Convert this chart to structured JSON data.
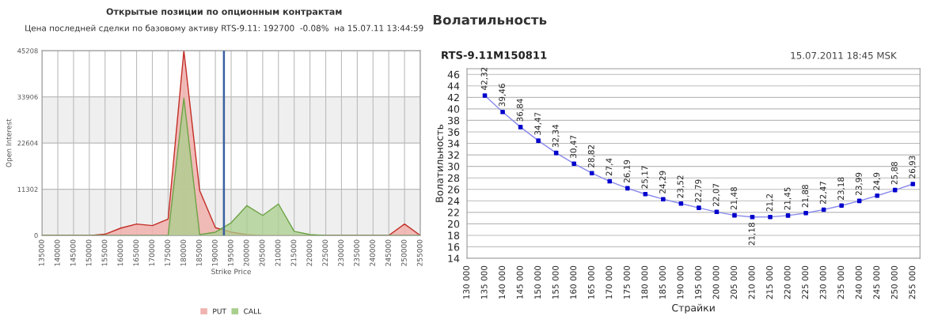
{
  "chart_data": [
    {
      "type": "area",
      "title": "Открытые позиции по опционным контрактам",
      "subtitle": "Цена последней сделки по базовому активу RTS-9.11: 192700  -0.08%  на 15.07.11 13:44:59",
      "xlabel": "Strike Price",
      "ylabel": "Open Interest",
      "x": [
        135000,
        140000,
        145000,
        150000,
        155000,
        160000,
        165000,
        170000,
        175000,
        180000,
        185000,
        190000,
        195000,
        200000,
        205000,
        210000,
        215000,
        220000,
        225000,
        230000,
        235000,
        240000,
        245000,
        250000,
        255000
      ],
      "series": [
        {
          "name": "PUT",
          "color": "#f0b4b0",
          "values": [
            0,
            0,
            0,
            0,
            300,
            1800,
            2800,
            2400,
            4000,
            45208,
            11000,
            1900,
            800,
            200,
            0,
            0,
            0,
            0,
            0,
            0,
            0,
            0,
            0,
            2800,
            0
          ]
        },
        {
          "name": "CALL",
          "color": "#a9cf8c",
          "values": [
            0,
            0,
            0,
            0,
            0,
            0,
            0,
            0,
            0,
            33600,
            200,
            800,
            3100,
            7300,
            4900,
            7700,
            1000,
            200,
            0,
            0,
            0,
            0,
            0,
            0,
            0
          ]
        }
      ],
      "xlim": [
        135000,
        255000
      ],
      "xticks": [
        135000,
        140000,
        145000,
        150000,
        155000,
        160000,
        165000,
        170000,
        175000,
        180000,
        185000,
        190000,
        195000,
        200000,
        205000,
        210000,
        215000,
        220000,
        225000,
        230000,
        235000,
        240000,
        245000,
        250000,
        255000
      ],
      "ylim": [
        0,
        45208
      ],
      "yticks": [
        0,
        11302,
        22604,
        33906,
        45208
      ],
      "ref_lines": [
        {
          "axis": "x",
          "value": 192700,
          "color": "#3a5fa0"
        }
      ],
      "bands": [
        {
          "axis": "y",
          "from": 0,
          "to": 11302,
          "color": "#efefef"
        },
        {
          "axis": "y",
          "from": 22604,
          "to": 33906,
          "color": "#efefef"
        }
      ],
      "grid": true,
      "legend": "bottom"
    },
    {
      "type": "line",
      "title": "Волатильность",
      "subtitle": "RTS-9.11M150811",
      "annotations": [
        "15.07.2011 18:45 MSK"
      ],
      "xlabel": "Страйки",
      "ylabel": "Волатильность",
      "x": [
        135000,
        140000,
        145000,
        150000,
        155000,
        160000,
        165000,
        170000,
        175000,
        180000,
        185000,
        190000,
        195000,
        200000,
        205000,
        210000,
        215000,
        220000,
        225000,
        230000,
        235000,
        240000,
        245000,
        250000,
        255000
      ],
      "series": [
        {
          "color": "#0000cc",
          "values": [
            42.32,
            39.46,
            36.84,
            34.47,
            32.34,
            30.47,
            28.82,
            27.4,
            26.19,
            25.17,
            24.29,
            23.52,
            22.79,
            22.07,
            21.48,
            21.18,
            21.2,
            21.45,
            21.88,
            22.47,
            23.18,
            23.99,
            24.9,
            25.88,
            26.93
          ],
          "value_labels": [
            "42,32",
            "39,46",
            "36,84",
            "34,47",
            "32,34",
            "30,47",
            "28,82",
            "27,4",
            "26,19",
            "25,17",
            "24,29",
            "23,52",
            "22,79",
            "22,07",
            "21,48",
            "21,18",
            "21,2",
            "21,45",
            "21,88",
            "22,47",
            "23,18",
            "23,99",
            "24,9",
            "25,88",
            "26,93"
          ]
        }
      ],
      "xlim": [
        130000,
        257000
      ],
      "xticks": [
        {
          "value": 130000,
          "label": "130 000"
        },
        {
          "value": 135000,
          "label": "135 000"
        },
        {
          "value": 140000,
          "label": "140 000"
        },
        {
          "value": 145000,
          "label": "145 000"
        },
        {
          "value": 150000,
          "label": "150 000"
        },
        {
          "value": 155000,
          "label": "155 000"
        },
        {
          "value": 160000,
          "label": "160 000"
        },
        {
          "value": 165000,
          "label": "165 000"
        },
        {
          "value": 170000,
          "label": "170 000"
        },
        {
          "value": 175000,
          "label": "175 000"
        },
        {
          "value": 180000,
          "label": "180 000"
        },
        {
          "value": 185000,
          "label": "185 000"
        },
        {
          "value": 190000,
          "label": "190 000"
        },
        {
          "value": 195000,
          "label": "195 000"
        },
        {
          "value": 200000,
          "label": "200 000"
        },
        {
          "value": 205000,
          "label": "205 000"
        },
        {
          "value": 210000,
          "label": "210 000"
        },
        {
          "value": 215000,
          "label": "215 000"
        },
        {
          "value": 220000,
          "label": "220 000"
        },
        {
          "value": 225000,
          "label": "225 000"
        },
        {
          "value": 230000,
          "label": "230 000"
        },
        {
          "value": 235000,
          "label": "235 000"
        },
        {
          "value": 240000,
          "label": "240 000"
        },
        {
          "value": 245000,
          "label": "245 000"
        },
        {
          "value": 250000,
          "label": "250 000"
        },
        {
          "value": 255000,
          "label": "255 000"
        }
      ],
      "ylim": [
        14,
        47
      ],
      "yticks": [
        14,
        16,
        18,
        20,
        22,
        24,
        26,
        28,
        30,
        32,
        34,
        36,
        38,
        40,
        42,
        44,
        46
      ],
      "grid": "y",
      "marker": "square",
      "line_style": "solid"
    }
  ]
}
